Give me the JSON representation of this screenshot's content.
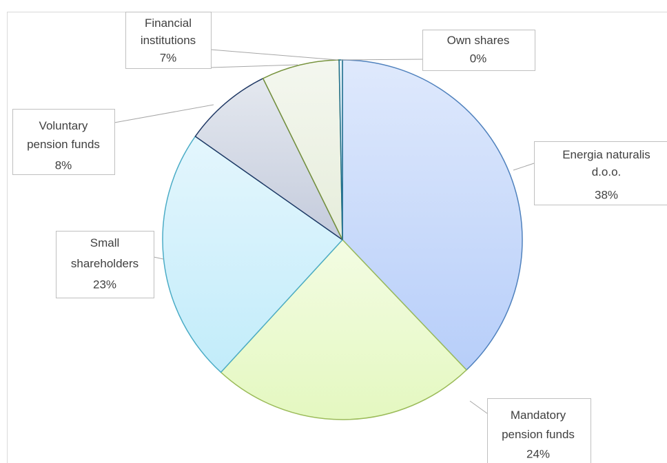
{
  "chart_data": {
    "type": "pie",
    "categories": [
      "Energia naturalis d.o.o.",
      "Mandatory pension funds",
      "Small shareholders",
      "Voluntary pension funds",
      "Financial institutions",
      "Own shares"
    ],
    "values": [
      38,
      24,
      23,
      8,
      7,
      0.3
    ],
    "value_labels": [
      "38%",
      "24%",
      "23%",
      "8%",
      "7%",
      "0%"
    ],
    "colors": [
      "#b7cef9",
      "#e4f8c0",
      "#c2ecfa",
      "#c4cbdc",
      "#e6eddb",
      "#c9e3ee"
    ],
    "edge_colors": [
      "#4f81bd",
      "#9bbb59",
      "#4bacc6",
      "#1f3864",
      "#76923c",
      "#1f6e8c"
    ]
  }
}
